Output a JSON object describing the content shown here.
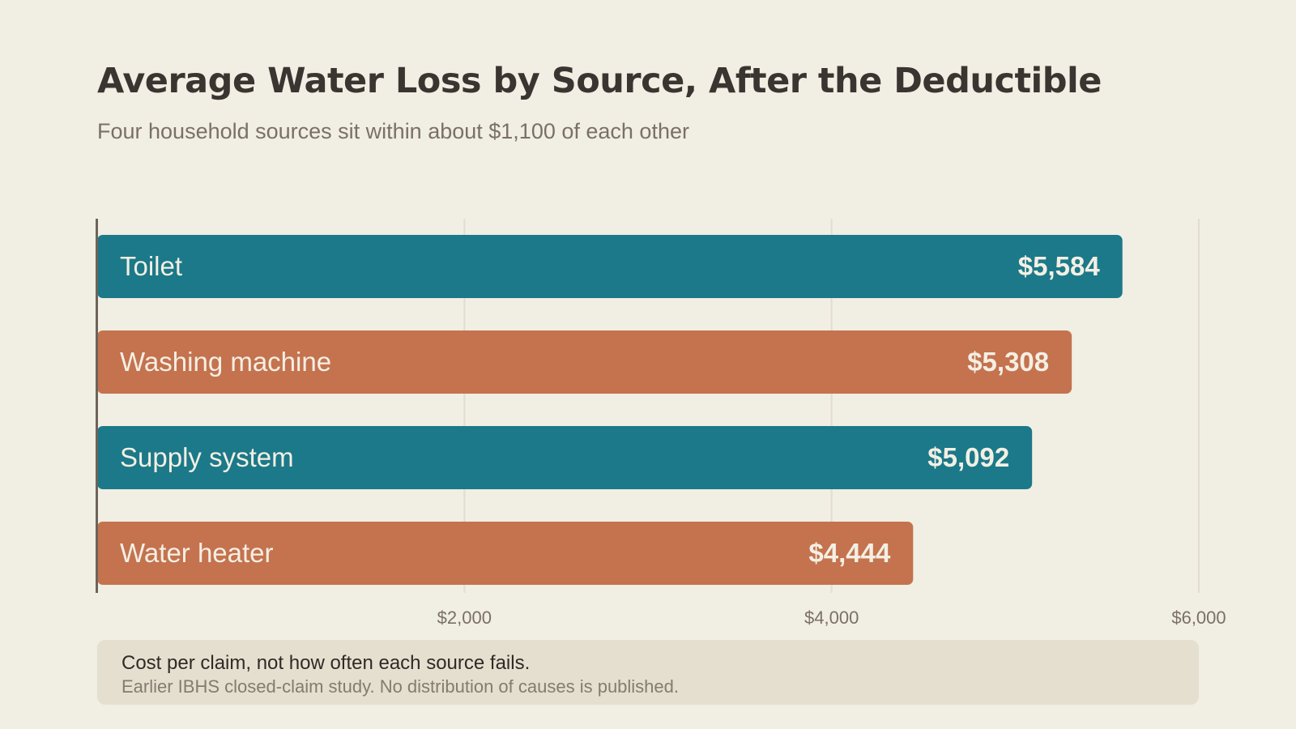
{
  "chart_data": {
    "type": "bar",
    "orientation": "horizontal",
    "title": "Average Water Loss by Source, After the Deductible",
    "subtitle": "Four household sources sit within about $1,100 of each other",
    "categories": [
      "Toilet",
      "Washing machine",
      "Supply system",
      "Water heater"
    ],
    "values": [
      5584,
      5308,
      5092,
      4444
    ],
    "value_labels": [
      "$5,584",
      "$5,308",
      "$5,092",
      "$4,444"
    ],
    "bar_colors": [
      "#1b7989",
      "#c4734e",
      "#1b7989",
      "#c4734e"
    ],
    "xlim": [
      0,
      6000
    ],
    "x_ticks": [
      2000,
      4000,
      6000
    ],
    "x_tick_labels": [
      "$2,000",
      "$4,000",
      "$6,000"
    ],
    "grid": "vertical",
    "xlabel": "",
    "ylabel": ""
  },
  "note": {
    "main": "Cost per claim, not how often each source fails.",
    "sub": "Earlier IBHS closed-claim study. No distribution of causes is published."
  },
  "colors": {
    "background": "#f1eee3",
    "grid": "#e2ddd0",
    "axis": "#6e645a",
    "bar_text": "#f4efe4",
    "tick_text": "#7a7066",
    "note_background": "#e4dfcf"
  }
}
